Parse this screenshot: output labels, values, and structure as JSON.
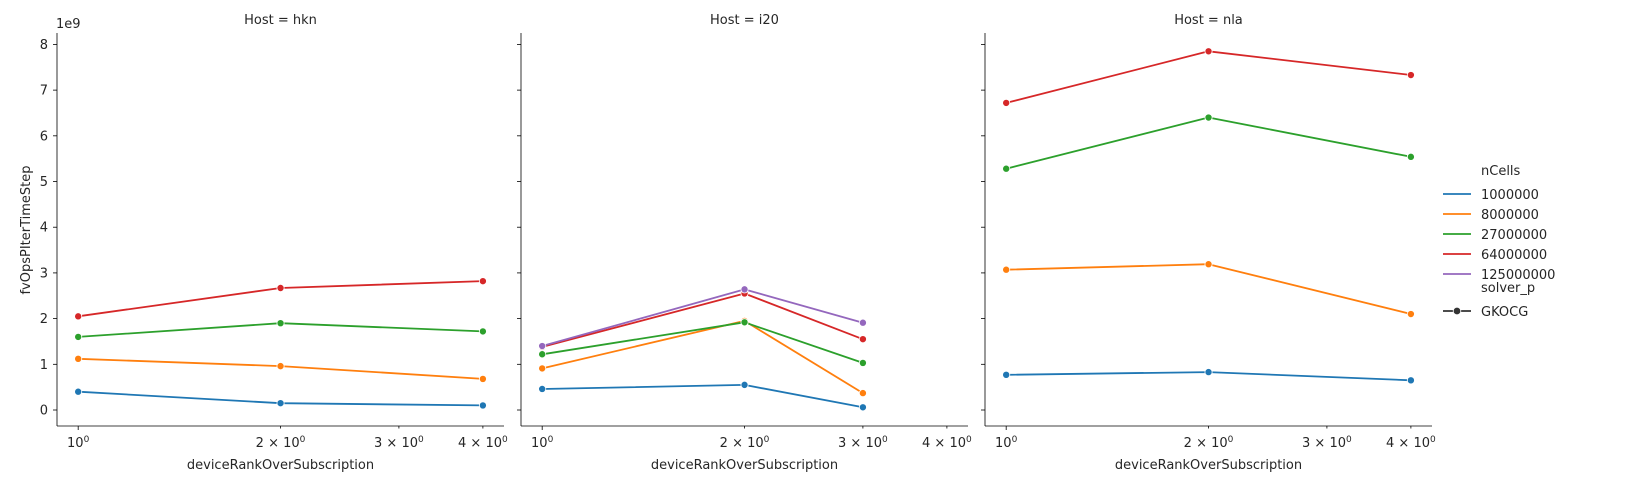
{
  "chart_data": {
    "type": "line",
    "facet_variable": "Host",
    "xlabel": "deviceRankOverSubscription",
    "ylabel": "fvOpsPIterTimeStep",
    "y_offset_label": "1e9",
    "x_scale": "log",
    "xlim": [
      0.93,
      4.3
    ],
    "ylim": [
      -0.35,
      8.25
    ],
    "y_ticks": [
      0,
      1,
      2,
      3,
      4,
      5,
      6,
      7,
      8
    ],
    "x_ticks": [
      {
        "value": 1,
        "label": "10",
        "sup": "0",
        "prefix": ""
      },
      {
        "value": 2,
        "label": "2 × 10",
        "sup": "0",
        "prefix": ""
      },
      {
        "value": 3,
        "label": "3 × 10",
        "sup": "0",
        "prefix": ""
      },
      {
        "value": 4,
        "label": "4 × 10",
        "sup": "0",
        "prefix": ""
      }
    ],
    "grid": false,
    "legend": {
      "placement": "right",
      "hue_title": "nCells",
      "style_title": "solver_p",
      "style_entries": [
        "GKOCG"
      ]
    },
    "series_colors": {
      "1000000": "#1f77b4",
      "8000000": "#ff7f0e",
      "27000000": "#2ca02c",
      "64000000": "#d62728",
      "125000000": "#9467bd"
    },
    "series_order": [
      "1000000",
      "8000000",
      "27000000",
      "64000000",
      "125000000"
    ],
    "panels": [
      {
        "title": "Host = hkn",
        "series": [
          {
            "name": "1000000",
            "x": [
              1,
              2,
              4
            ],
            "y": [
              0.4,
              0.15,
              0.1
            ]
          },
          {
            "name": "8000000",
            "x": [
              1,
              2,
              4
            ],
            "y": [
              1.12,
              0.96,
              0.68
            ]
          },
          {
            "name": "27000000",
            "x": [
              1,
              2,
              4
            ],
            "y": [
              1.6,
              1.9,
              1.72
            ]
          },
          {
            "name": "64000000",
            "x": [
              1,
              2,
              4
            ],
            "y": [
              2.05,
              2.67,
              2.82
            ]
          }
        ]
      },
      {
        "title": "Host = i20",
        "series": [
          {
            "name": "1000000",
            "x": [
              1,
              2,
              3
            ],
            "y": [
              0.46,
              0.55,
              0.06
            ]
          },
          {
            "name": "8000000",
            "x": [
              1,
              2,
              3
            ],
            "y": [
              0.91,
              1.95,
              0.37
            ]
          },
          {
            "name": "27000000",
            "x": [
              1,
              2,
              3
            ],
            "y": [
              1.22,
              1.92,
              1.03
            ]
          },
          {
            "name": "64000000",
            "x": [
              1,
              2,
              3
            ],
            "y": [
              1.38,
              2.55,
              1.55
            ]
          },
          {
            "name": "125000000",
            "x": [
              1,
              2,
              3
            ],
            "y": [
              1.4,
              2.64,
              1.91
            ]
          }
        ]
      },
      {
        "title": "Host = nla",
        "series": [
          {
            "name": "1000000",
            "x": [
              1,
              2,
              4
            ],
            "y": [
              0.77,
              0.83,
              0.65
            ]
          },
          {
            "name": "8000000",
            "x": [
              1,
              2,
              4
            ],
            "y": [
              3.07,
              3.19,
              2.1
            ]
          },
          {
            "name": "27000000",
            "x": [
              1,
              2,
              4
            ],
            "y": [
              5.28,
              6.4,
              5.54
            ]
          },
          {
            "name": "64000000",
            "x": [
              1,
              2,
              4
            ],
            "y": [
              6.72,
              7.85,
              7.33
            ]
          }
        ]
      }
    ]
  }
}
